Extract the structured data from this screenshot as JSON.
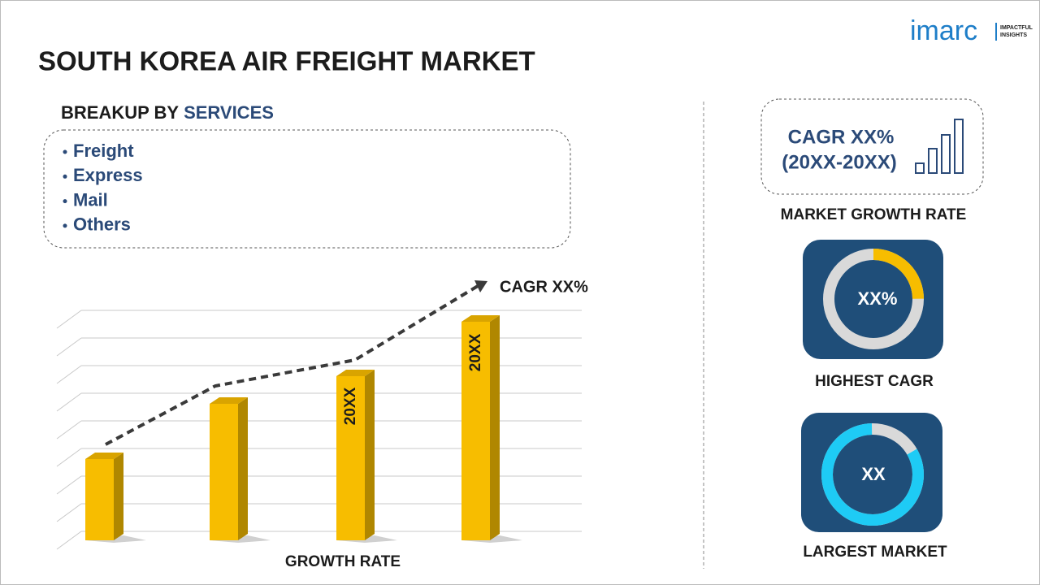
{
  "logo": {
    "name": "imarc",
    "tagline_1": "IMPACTFUL",
    "tagline_2": "INSIGHTS"
  },
  "header": {
    "title": "SOUTH KOREA AIR FREIGHT MARKET"
  },
  "breakup": {
    "label": "BREAKUP BY",
    "dimension": "SERVICES",
    "items": [
      "Freight",
      "Express",
      "Mail",
      "Others"
    ]
  },
  "growth_chart": {
    "trend_label": "CAGR XX%",
    "bar_labels": [
      "20XX",
      "20XX"
    ],
    "caption": "GROWTH RATE"
  },
  "market_growth": {
    "line_1": "CAGR XX%",
    "line_2": "(20XX-20XX)",
    "caption": "MARKET GROWTH RATE"
  },
  "highest_cagr": {
    "value": "XX%",
    "caption": "HIGHEST CAGR"
  },
  "largest_market": {
    "value": "XX",
    "caption": "LARGEST MARKET"
  }
}
